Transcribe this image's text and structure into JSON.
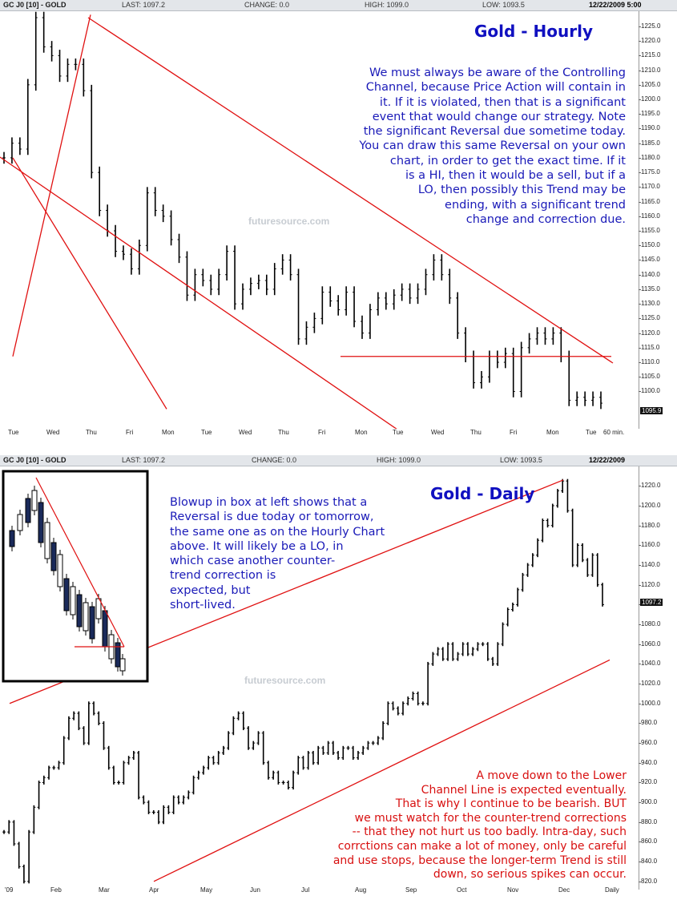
{
  "hourly": {
    "header": {
      "symbol": "GC J0 [10] - GOLD",
      "last": "LAST: 1097.2",
      "change": "CHANGE: 0.0",
      "high": "HIGH: 1099.0",
      "low": "LOW: 1093.5",
      "date": "12/22/2009 5:00"
    },
    "title": "Gold - Hourly",
    "watermark": "futuresource.com",
    "last_tag": "1095.9",
    "period_label": "60 min.",
    "note_lines": [
      "We must always be aware of the Controlling",
      "Channel, because Price Action will contain in",
      "it.  If it is violated, then that is a significant",
      "event that would change our strategy.  Note",
      "the significant Reversal due sometime today.",
      "You can draw this same Reversal on your own",
      "chart, in order to get the exact time.  If it",
      "is a HI, then it would be a sell, but if a",
      "LO, then possibly this Trend may be",
      "ending, with a significant trend",
      "change and correction due."
    ]
  },
  "daily": {
    "header": {
      "symbol": "GC J0 [10] - GOLD",
      "last": "LAST: 1097.2",
      "change": "CHANGE: 0.0",
      "high": "HIGH: 1099.0",
      "low": "LOW: 1093.5",
      "date": "12/22/2009"
    },
    "title": "Gold - Daily",
    "watermark": "futuresource.com",
    "last_tag": "1097.2",
    "period_label": "Daily",
    "note_lines": [
      "Blowup in box at left shows that a",
      "Reversal is due today or tomorrow,",
      "the same one as on the Hourly Chart",
      "above.  It will likely be a LO, in",
      "which case another counter-",
      "trend correction is",
      "expected, but",
      "short-lived."
    ],
    "red_note_lines": [
      "A move down to the Lower",
      "Channel Line is expected eventually.",
      "That is why I continue to be bearish.  BUT",
      "we must watch for the counter-trend corrections",
      "-- that they not hurt us too badly.  Intra-day, such",
      "corrctions can make a lot of money, only be careful",
      "and use stops, because the longer-term Trend is still",
      "down, so serious spikes can occur."
    ]
  },
  "colors": {
    "price": "#000000",
    "trendline": "#e01010",
    "title": "#1010c0",
    "note_blue": "#1a1ab8",
    "note_red": "#d81010"
  },
  "chart_data": [
    {
      "type": "line",
      "title": "Gold - Hourly",
      "xlabel": "",
      "ylabel": "",
      "x_ticks": [
        "Tue",
        "Wed",
        "Thu",
        "Fri",
        "Mon",
        "Tue",
        "Wed",
        "Thu",
        "Fri",
        "Mon",
        "Tue",
        "Wed",
        "Thu",
        "Fri",
        "Mon",
        "Tue"
      ],
      "y_ticks": [
        1100,
        1105,
        1110,
        1115,
        1120,
        1125,
        1130,
        1135,
        1140,
        1145,
        1150,
        1155,
        1160,
        1165,
        1170,
        1175,
        1180,
        1185,
        1190,
        1195,
        1200,
        1205,
        1210,
        1215,
        1220,
        1225
      ],
      "ylim": [
        1093,
        1228
      ],
      "series": [
        {
          "values": [
            1180,
            1185,
            1183,
            1205,
            1228,
            1218,
            1215,
            1208,
            1212,
            1212,
            1203,
            1175,
            1162,
            1155,
            1148,
            1147,
            1142,
            1150,
            1168,
            1162,
            1160,
            1152,
            1146,
            1133,
            1140,
            1138,
            1135,
            1140,
            1148,
            1130,
            1135,
            1137,
            1138,
            1135,
            1142,
            1145,
            1140,
            1118,
            1122,
            1125,
            1134,
            1131,
            1128,
            1134,
            1124,
            1120,
            1128,
            1132,
            1130,
            1133,
            1135,
            1132,
            1135,
            1140,
            1145,
            1140,
            1132,
            1120,
            1112,
            1103,
            1105,
            1112,
            1110,
            1113,
            1100,
            1115,
            1118,
            1120,
            1118,
            1120,
            1112,
            1097,
            1098,
            1097,
            1098,
            1096
          ]
        }
      ],
      "trendlines": [
        {
          "name": "upper",
          "from": [
            "Thu",
            1229
          ],
          "to": [
            "Tue",
            1112
          ]
        },
        {
          "name": "lower",
          "from": [
            "Tue",
            1180
          ],
          "to": [
            "Mon",
            1094
          ]
        },
        {
          "name": "support",
          "value": 1112
        }
      ],
      "last": 1095.9,
      "grid": false
    },
    {
      "type": "line",
      "title": "Gold - Daily",
      "xlabel": "",
      "ylabel": "",
      "x_ticks": [
        "'09",
        "Feb",
        "Mar",
        "Apr",
        "May",
        "Jun",
        "Jul",
        "Aug",
        "Sep",
        "Oct",
        "Nov",
        "Dec",
        "Daily"
      ],
      "y_ticks": [
        820,
        840,
        860,
        880,
        900,
        920,
        940,
        960,
        980,
        1000,
        1020,
        1040,
        1060,
        1080,
        1100,
        1120,
        1140,
        1160,
        1180,
        1200,
        1220
      ],
      "ylim": [
        815,
        1230
      ],
      "series": [
        {
          "values": [
            870,
            880,
            858,
            835,
            820,
            870,
            895,
            920,
            925,
            935,
            935,
            940,
            965,
            985,
            990,
            975,
            960,
            1000,
            990,
            980,
            955,
            935,
            920,
            920,
            940,
            945,
            950,
            905,
            900,
            890,
            890,
            880,
            895,
            890,
            905,
            900,
            905,
            910,
            925,
            930,
            935,
            945,
            940,
            950,
            955,
            970,
            985,
            990,
            975,
            955,
            960,
            970,
            940,
            925,
            930,
            920,
            920,
            915,
            930,
            945,
            935,
            950,
            940,
            955,
            950,
            960,
            950,
            945,
            955,
            955,
            945,
            950,
            955,
            960,
            960,
            965,
            980,
            1000,
            995,
            990,
            1000,
            1005,
            1010,
            1000,
            1000,
            1040,
            1050,
            1055,
            1045,
            1060,
            1045,
            1050,
            1060,
            1050,
            1055,
            1060,
            1060,
            1045,
            1040,
            1060,
            1080,
            1095,
            1100,
            1115,
            1130,
            1140,
            1150,
            1165,
            1185,
            1180,
            1200,
            1215,
            1225,
            1195,
            1140,
            1160,
            1145,
            1130,
            1150,
            1120,
            1100
          ]
        }
      ],
      "trendlines": [
        {
          "name": "upper",
          "from": [
            "'09",
            1000
          ],
          "to": [
            "Dec",
            1226
          ]
        },
        {
          "name": "lower",
          "from": [
            "Apr",
            820
          ],
          "to": [
            "Daily",
            1044
          ]
        }
      ],
      "last": 1097.2,
      "grid": false
    }
  ]
}
